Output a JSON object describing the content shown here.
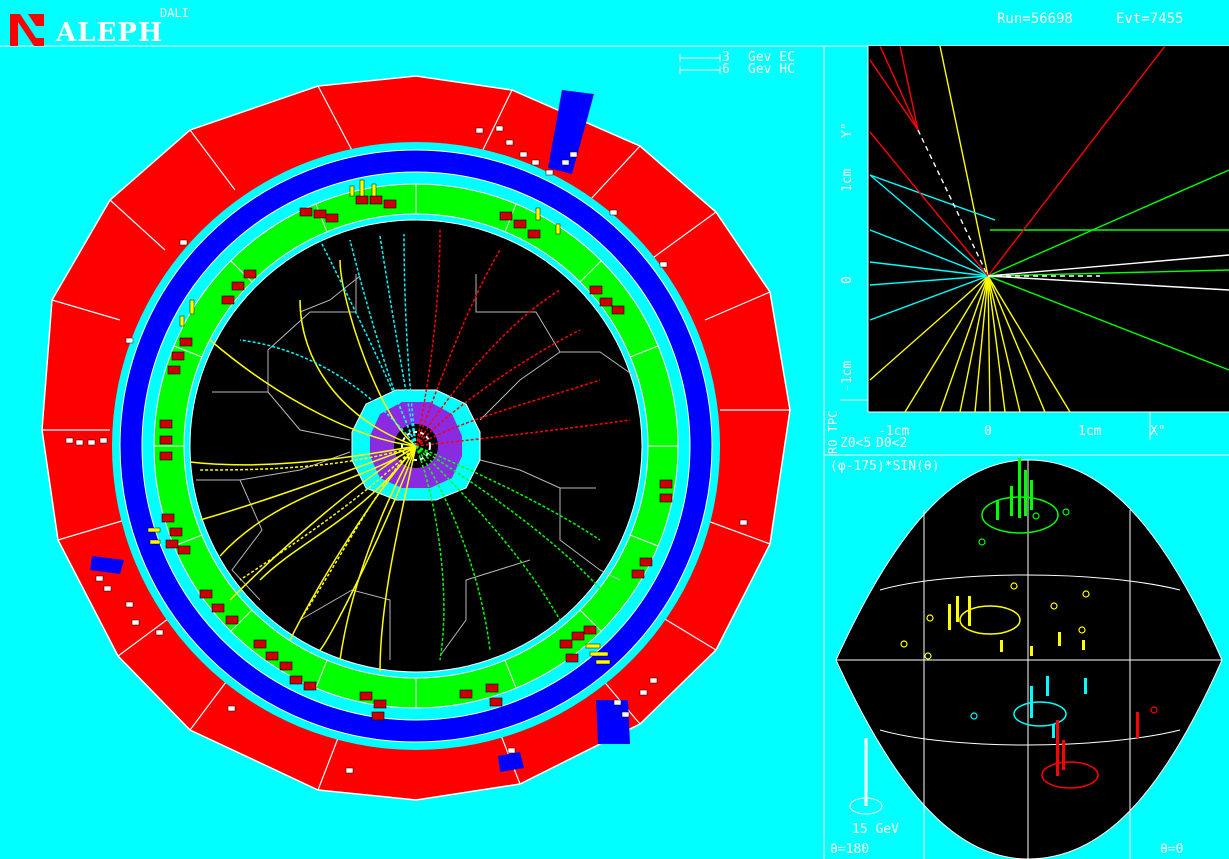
{
  "header": {
    "experiment": "ALEPH",
    "program": "DALI",
    "run_label": "Run=56698",
    "event_label": "Evt=7455"
  },
  "main_view": {
    "ec_scale_value": "3",
    "ec_scale_unit": "Gev EC",
    "hc_scale_value": "6",
    "hc_scale_unit": "Gev HC"
  },
  "vertex_view": {
    "y_axis_label": "Y\"",
    "x_axis_label": "X\"",
    "y_ticks": [
      "1cm",
      "0",
      "-1cm"
    ],
    "x_ticks": [
      "-1cm",
      "0",
      "1cm"
    ],
    "detector_label": "RO TPC",
    "cut_z0": "Z0<5",
    "cut_d0": "D0<2"
  },
  "projection_view": {
    "title": "(φ-175)*SIN(θ)",
    "energy_scale": "15 GeV",
    "theta_left": "θ=180",
    "theta_right": "θ=0"
  },
  "colors": {
    "background": "#00ffff",
    "hcal": "#ff0000",
    "coil": "#0000ff",
    "ecal": "#00ff00",
    "tpc": "#000000",
    "track_yellow": "#ffff00",
    "track_cyan": "#00ffff",
    "track_red": "#ff0000",
    "track_green": "#00ff00",
    "itc": "#8a2be2",
    "logo_red": "#ff0000"
  }
}
